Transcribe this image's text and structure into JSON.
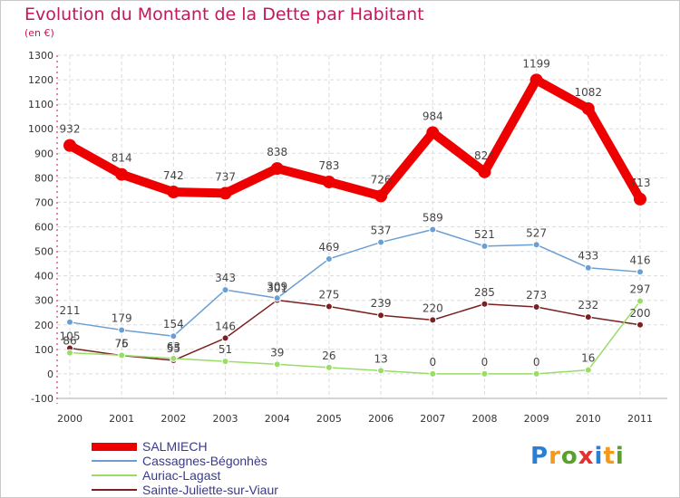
{
  "chart_data": {
    "type": "line",
    "title": "Evolution du Montant de la Dette par Habitant",
    "subtitle": "(en €)",
    "xlabel": "",
    "ylabel": "",
    "categories": [
      "2000",
      "2001",
      "2002",
      "2003",
      "2004",
      "2005",
      "2006",
      "2007",
      "2008",
      "2009",
      "2010",
      "2011"
    ],
    "ylim": [
      -100,
      1300
    ],
    "yticks": [
      -100,
      0,
      100,
      200,
      300,
      400,
      500,
      600,
      700,
      800,
      900,
      1000,
      1100,
      1200,
      1300
    ],
    "grid": true,
    "legend_position": "bottom-left",
    "series": [
      {
        "name": "SALMIECH",
        "color": "#ee0000",
        "values": [
          932,
          814,
          742,
          737,
          838,
          783,
          726,
          984,
          824,
          1199,
          1082,
          713
        ]
      },
      {
        "name": "Cassagnes-Bégonhès",
        "color": "#6a9fd4",
        "values": [
          211,
          179,
          154,
          343,
          309,
          469,
          537,
          589,
          521,
          527,
          433,
          416
        ]
      },
      {
        "name": "Auriac-Lagast",
        "color": "#99dd66",
        "values": [
          86,
          76,
          63,
          51,
          39,
          26,
          13,
          0,
          0,
          0,
          16,
          297
        ]
      },
      {
        "name": "Sainte-Juliette-sur-Viaur",
        "color": "#7a2020",
        "values": [
          105,
          75,
          55,
          146,
          301,
          275,
          239,
          220,
          285,
          273,
          232,
          200
        ]
      }
    ]
  },
  "brand": {
    "letters": [
      "P",
      "r",
      "o",
      "x",
      "i",
      "t",
      "i"
    ],
    "colors": [
      "#2a7fd4",
      "#f29a1e",
      "#5aa02c",
      "#e53030",
      "#2a7fd4",
      "#f29a1e",
      "#5aa02c"
    ]
  }
}
